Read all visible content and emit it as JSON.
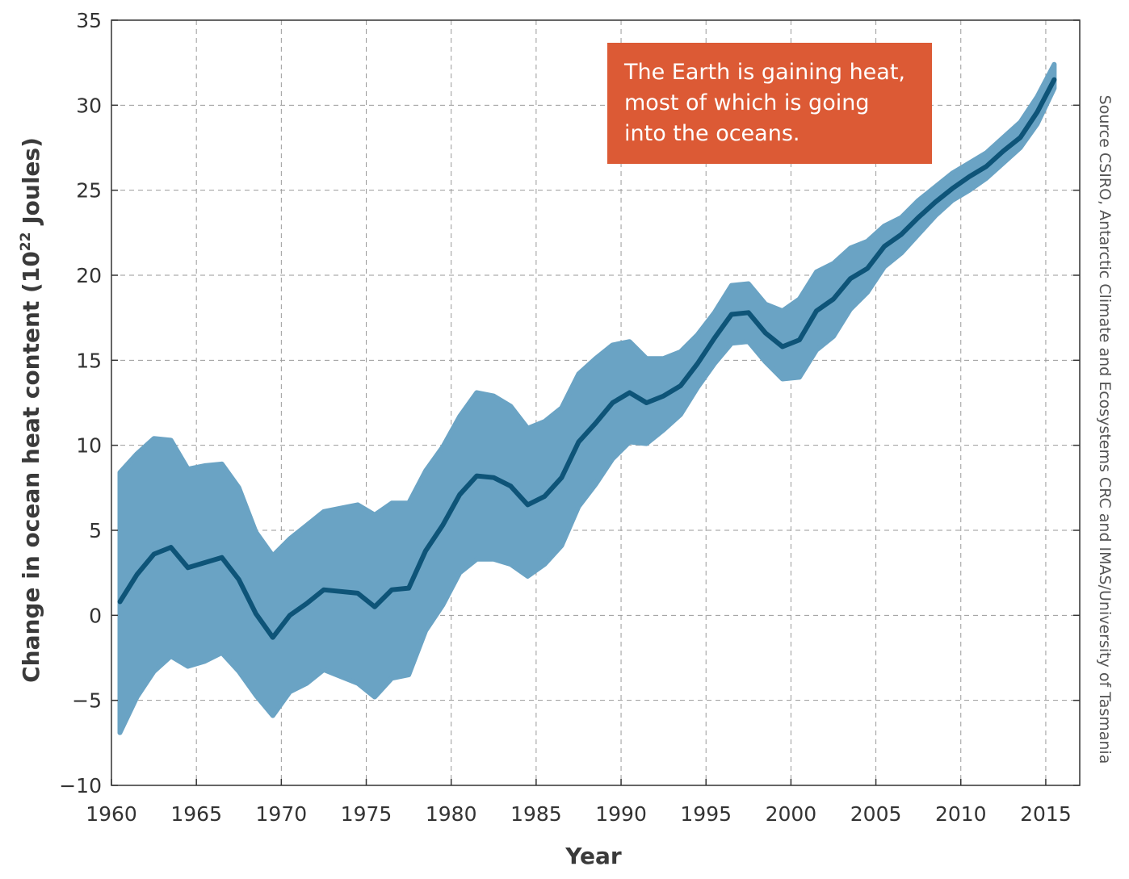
{
  "chart_data": {
    "type": "line",
    "title": "",
    "xlabel": "Year",
    "ylabel": "Change in ocean heat content (10²² Joules)",
    "ylabel_main": "Change in ocean heat content (10",
    "ylabel_sup": "22",
    "ylabel_tail": " Joules)",
    "xlim": [
      1960,
      2017
    ],
    "ylim": [
      -10,
      35
    ],
    "xticks": [
      1960,
      1965,
      1970,
      1975,
      1980,
      1985,
      1990,
      1995,
      2000,
      2005,
      2010,
      2015
    ],
    "yticks": [
      -10,
      -5,
      0,
      5,
      10,
      15,
      20,
      25,
      30,
      35
    ],
    "ytick_labels": [
      "−10",
      "−5",
      "0",
      "5",
      "10",
      "15",
      "20",
      "25",
      "30",
      "35"
    ],
    "grid": true,
    "annotation": [
      "The Earth is gaining heat,",
      "most of which is going",
      "into the oceans."
    ],
    "source": "Source CSIRO, Antarctic Climate and Ecosystems CRC and IMAS/University of Tasmania",
    "colors": {
      "line": "#0e5478",
      "band": "#6aa3c4",
      "annotation_bg": "#dc5a35",
      "grid": "#9a9a9a",
      "axis": "#333333"
    },
    "x": [
      1960.5,
      1961.5,
      1962.5,
      1963.5,
      1964.5,
      1965.5,
      1966.5,
      1967.5,
      1968.5,
      1969.5,
      1970.5,
      1971.5,
      1972.5,
      1973.5,
      1974.5,
      1975.5,
      1976.5,
      1977.5,
      1978.5,
      1979.5,
      1980.5,
      1981.5,
      1982.5,
      1983.5,
      1984.5,
      1985.5,
      1986.5,
      1987.5,
      1988.5,
      1989.5,
      1990.5,
      1991.5,
      1992.5,
      1993.5,
      1994.5,
      1995.5,
      1996.5,
      1997.5,
      1998.5,
      1999.5,
      2000.5,
      2001.5,
      2002.5,
      2003.5,
      2004.5,
      2005.5,
      2006.5,
      2007.5,
      2008.5,
      2009.5,
      2010.5,
      2011.5,
      2012.5,
      2013.5,
      2014.5,
      2015.5
    ],
    "series": [
      {
        "values": [
          0.8,
          2.4,
          3.6,
          4.0,
          2.8,
          3.1,
          3.4,
          2.1,
          0.1,
          -1.3,
          0.0,
          0.7,
          1.5,
          1.4,
          1.3,
          0.5,
          1.5,
          1.6,
          3.8,
          5.3,
          7.1,
          8.2,
          8.1,
          7.6,
          6.5,
          7.0,
          8.1,
          10.2,
          11.3,
          12.5,
          13.1,
          12.5,
          12.9,
          13.5,
          14.8,
          16.3,
          17.7,
          17.8,
          16.6,
          15.8,
          16.2,
          17.9,
          18.6,
          19.8,
          20.4,
          21.7,
          22.4,
          23.4,
          24.3,
          25.1,
          25.8,
          26.4,
          27.3,
          28.1,
          29.6,
          31.5
        ],
        "lower": [
          -6.9,
          -4.8,
          -3.3,
          -2.4,
          -3.0,
          -2.7,
          -2.2,
          -3.3,
          -4.7,
          -5.9,
          -4.5,
          -4.0,
          -3.2,
          -3.6,
          -4.0,
          -4.8,
          -3.7,
          -3.5,
          -0.9,
          0.6,
          2.5,
          3.3,
          3.3,
          3.0,
          2.3,
          3.0,
          4.1,
          6.4,
          7.7,
          9.2,
          10.2,
          10.1,
          10.9,
          11.8,
          13.4,
          14.8,
          16.0,
          16.1,
          14.9,
          13.9,
          14.0,
          15.6,
          16.4,
          18.0,
          19.0,
          20.5,
          21.3,
          22.4,
          23.5,
          24.4,
          25.0,
          25.7,
          26.6,
          27.5,
          28.9,
          31.0
        ],
        "upper": [
          8.4,
          9.5,
          10.4,
          10.3,
          8.6,
          8.8,
          8.9,
          7.5,
          4.9,
          3.5,
          4.5,
          5.3,
          6.1,
          6.3,
          6.5,
          5.9,
          6.6,
          6.6,
          8.5,
          9.9,
          11.7,
          13.1,
          12.9,
          12.3,
          11.0,
          11.4,
          12.2,
          14.2,
          15.1,
          15.9,
          16.1,
          15.1,
          15.1,
          15.5,
          16.5,
          17.8,
          19.4,
          19.5,
          18.3,
          17.9,
          18.6,
          20.2,
          20.7,
          21.6,
          22.0,
          22.9,
          23.4,
          24.4,
          25.2,
          26.0,
          26.6,
          27.2,
          28.1,
          29.0,
          30.5,
          32.4
        ]
      }
    ]
  }
}
